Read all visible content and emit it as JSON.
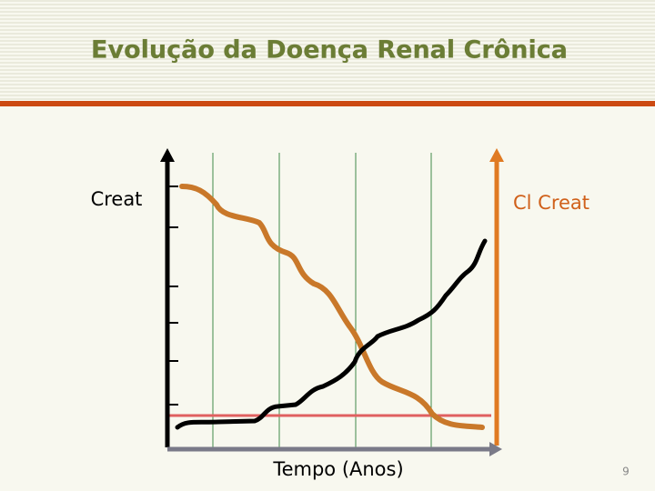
{
  "header": {
    "title": "Evolução da Doença Renal Crônica"
  },
  "diagram": {
    "left_axis_label": "Creat",
    "right_axis_label": "Cl Creat",
    "x_axis_label": "Tempo (Anos)"
  },
  "footer": {
    "page_number": "9"
  }
}
